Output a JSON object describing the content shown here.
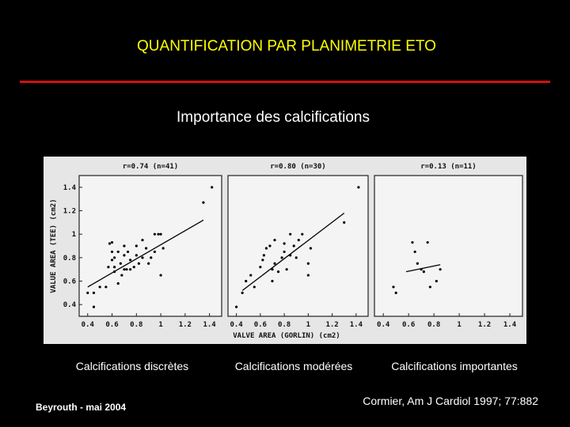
{
  "title": "QUANTIFICATION PAR PLANIMETRIE ETO",
  "subtitle": "Importance des calcifications",
  "captions": [
    "Calcifications discrètes",
    "Calcifications modérées",
    "Calcifications importantes"
  ],
  "footer_left": "Beyrouth - mai 2004",
  "footer_right": "Cormier, Am J Cardiol 1997; 77:882",
  "chart_data": [
    {
      "type": "scatter",
      "title": "r=0.74  (n=41)",
      "ylabel": "VALUE AREA (TEE) (cm2)",
      "color": "#000000",
      "xlim": [
        0.33,
        1.5
      ],
      "ylim": [
        0.3,
        1.5
      ],
      "xticks": [
        0.4,
        0.6,
        0.8,
        1,
        1.2,
        1.4
      ],
      "yticks": [
        0.4,
        0.6,
        0.8,
        1,
        1.2,
        1.4
      ],
      "x": [
        0.4,
        0.45,
        0.45,
        0.5,
        0.55,
        0.57,
        0.58,
        0.6,
        0.6,
        0.62,
        0.62,
        0.65,
        0.67,
        0.68,
        0.7,
        0.7,
        0.72,
        0.73,
        0.75,
        0.75,
        0.78,
        0.8,
        0.8,
        0.82,
        0.85,
        0.85,
        0.88,
        0.9,
        0.92,
        0.95,
        0.95,
        1.0,
        1.0,
        1.02,
        0.98,
        0.7,
        0.65,
        0.6,
        0.62,
        1.35,
        1.42
      ],
      "y": [
        0.5,
        0.5,
        0.38,
        0.55,
        0.55,
        0.72,
        0.92,
        0.85,
        0.93,
        0.8,
        0.68,
        0.58,
        0.75,
        0.65,
        0.82,
        0.9,
        0.7,
        0.85,
        0.7,
        0.78,
        0.72,
        0.82,
        0.9,
        0.75,
        0.95,
        0.8,
        0.88,
        0.75,
        0.8,
        0.85,
        1.0,
        1.0,
        0.65,
        0.88,
        1.0,
        0.7,
        0.85,
        0.78,
        0.72,
        1.27,
        1.4
      ],
      "fit": {
        "x": [
          0.4,
          1.35
        ],
        "y": [
          0.55,
          1.12
        ]
      }
    },
    {
      "type": "scatter",
      "title": "r=0.80  (n=30)",
      "xlabel": "VALVE AREA (GORLIN) (cm2)",
      "color": "#000000",
      "xlim": [
        0.33,
        1.5
      ],
      "ylim": [
        0.3,
        1.5
      ],
      "xticks": [
        0.4,
        0.6,
        0.8,
        1,
        1.2,
        1.4
      ],
      "x": [
        0.4,
        0.45,
        0.48,
        0.52,
        0.55,
        0.6,
        0.62,
        0.63,
        0.65,
        0.68,
        0.7,
        0.72,
        0.72,
        0.75,
        0.78,
        0.8,
        0.8,
        0.82,
        0.85,
        0.88,
        0.9,
        0.92,
        0.95,
        1.0,
        1.0,
        1.02,
        0.85,
        0.7,
        1.3,
        1.42
      ],
      "y": [
        0.38,
        0.5,
        0.6,
        0.65,
        0.55,
        0.72,
        0.78,
        0.82,
        0.88,
        0.9,
        0.7,
        0.75,
        0.95,
        0.68,
        0.8,
        0.85,
        0.92,
        0.7,
        0.82,
        0.9,
        0.8,
        0.95,
        1.0,
        0.75,
        0.65,
        0.88,
        1.0,
        0.6,
        1.1,
        1.4
      ],
      "fit": {
        "x": [
          0.45,
          1.3
        ],
        "y": [
          0.52,
          1.18
        ]
      }
    },
    {
      "type": "scatter",
      "title": "r=0.13  (n=11)",
      "color": "#000000",
      "xlim": [
        0.33,
        1.5
      ],
      "ylim": [
        0.3,
        1.5
      ],
      "xticks": [
        0.4,
        0.6,
        0.8,
        1,
        1.2,
        1.4
      ],
      "x": [
        0.48,
        0.5,
        0.63,
        0.65,
        0.67,
        0.72,
        0.75,
        0.77,
        0.82,
        0.85,
        0.7
      ],
      "y": [
        0.55,
        0.5,
        0.93,
        0.85,
        0.75,
        0.68,
        0.93,
        0.55,
        0.6,
        0.7,
        0.7
      ],
      "fit": {
        "x": [
          0.58,
          0.85
        ],
        "y": [
          0.68,
          0.74
        ]
      }
    }
  ]
}
